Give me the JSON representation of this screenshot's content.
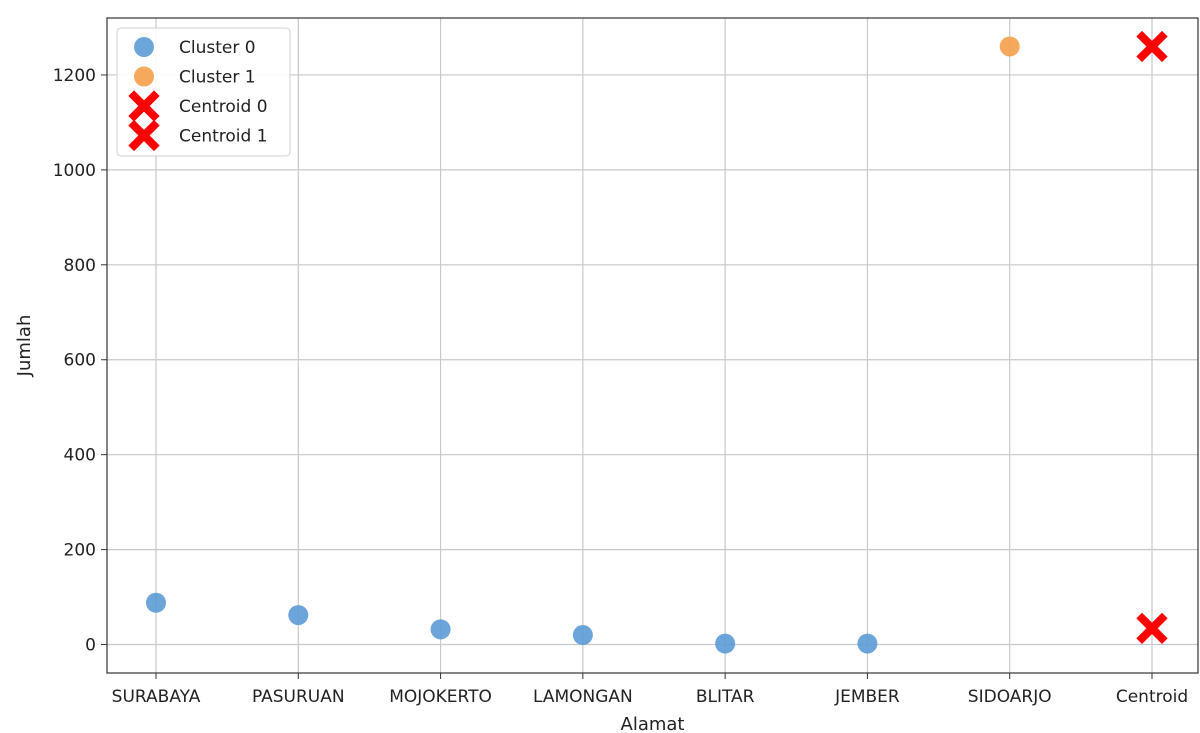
{
  "chart_data": {
    "type": "scatter",
    "xlabel": "Alamat",
    "ylabel": "Jumlah",
    "categories": [
      "SURABAYA",
      "PASURUAN",
      "MOJOKERTO",
      "LAMONGAN",
      "BLITAR",
      "JEMBER",
      "SIDOARJO",
      "Centroid"
    ],
    "y_ticks": [
      0,
      200,
      400,
      600,
      800,
      1000,
      1200
    ],
    "ylim": [
      -60,
      1320
    ],
    "grid": true,
    "legend_placement": "top-left",
    "series": [
      {
        "name": "Cluster 0",
        "marker": "circle",
        "color": "#5b9bd5",
        "points": [
          {
            "x": "SURABAYA",
            "y": 88
          },
          {
            "x": "PASURUAN",
            "y": 62
          },
          {
            "x": "MOJOKERTO",
            "y": 32
          },
          {
            "x": "LAMONGAN",
            "y": 20
          },
          {
            "x": "BLITAR",
            "y": 2
          },
          {
            "x": "JEMBER",
            "y": 2
          }
        ]
      },
      {
        "name": "Cluster 1",
        "marker": "circle",
        "color": "#f5a04a",
        "points": [
          {
            "x": "SIDOARJO",
            "y": 1260
          }
        ]
      },
      {
        "name": "Centroid 0",
        "marker": "x",
        "color": "#ff0000",
        "points": [
          {
            "x": "Centroid",
            "y": 34
          }
        ]
      },
      {
        "name": "Centroid 1",
        "marker": "x",
        "color": "#ff0000",
        "points": [
          {
            "x": "Centroid",
            "y": 1260
          }
        ]
      }
    ]
  }
}
